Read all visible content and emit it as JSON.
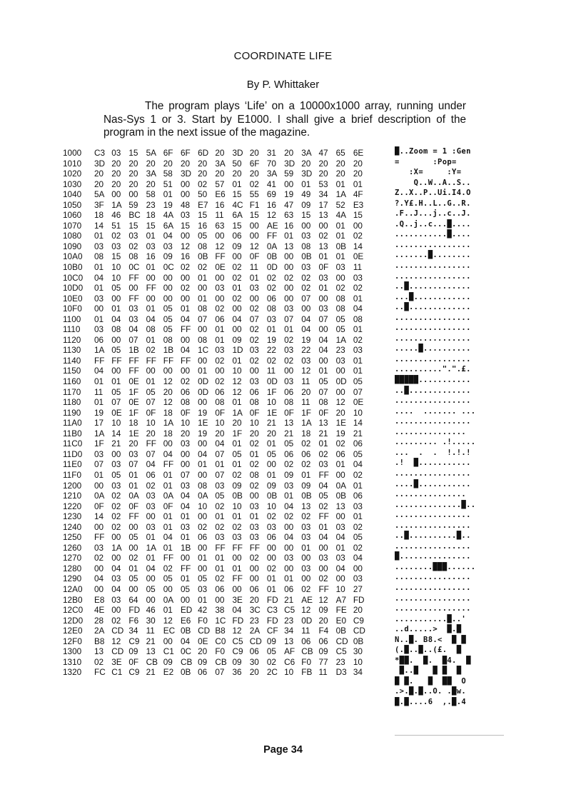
{
  "title": "COORDINATE LIFE",
  "byline": "By P. Whittaker",
  "intro": "The program plays ‘Life’ on a 10000x1000 array, running under Nas-Sys 1 or 3. Start by E1000. I shall give a brief description of the program in the next issue of the magazine.",
  "hexdump": [
    {
      "addr": "1000",
      "bytes": [
        "C3",
        "03",
        "15",
        "5A",
        "6F",
        "6F",
        "6D",
        "20",
        "3D",
        "20",
        "31",
        "20",
        "3A",
        "47",
        "65",
        "6E"
      ]
    },
    {
      "addr": "1010",
      "bytes": [
        "3D",
        "20",
        "20",
        "20",
        "20",
        "20",
        "20",
        "3A",
        "50",
        "6F",
        "70",
        "3D",
        "20",
        "20",
        "20",
        "20"
      ]
    },
    {
      "addr": "1020",
      "bytes": [
        "20",
        "20",
        "20",
        "3A",
        "58",
        "3D",
        "20",
        "20",
        "20",
        "20",
        "3A",
        "59",
        "3D",
        "20",
        "20",
        "20"
      ]
    },
    {
      "addr": "1030",
      "bytes": [
        "20",
        "20",
        "20",
        "20",
        "51",
        "00",
        "02",
        "57",
        "01",
        "02",
        "41",
        "00",
        "01",
        "53",
        "01",
        "01"
      ]
    },
    {
      "addr": "1040",
      "bytes": [
        "5A",
        "00",
        "00",
        "58",
        "01",
        "00",
        "50",
        "E6",
        "15",
        "55",
        "69",
        "19",
        "49",
        "34",
        "1A",
        "4F"
      ]
    },
    {
      "addr": "1050",
      "bytes": [
        "3F",
        "1A",
        "59",
        "23",
        "19",
        "48",
        "E7",
        "16",
        "4C",
        "F1",
        "16",
        "47",
        "09",
        "17",
        "52",
        "E3"
      ]
    },
    {
      "addr": "1060",
      "bytes": [
        "18",
        "46",
        "BC",
        "18",
        "4A",
        "03",
        "15",
        "11",
        "6A",
        "15",
        "12",
        "63",
        "15",
        "13",
        "4A",
        "15"
      ]
    },
    {
      "addr": "1070",
      "bytes": [
        "14",
        "51",
        "15",
        "15",
        "6A",
        "15",
        "16",
        "63",
        "15",
        "00",
        "AE",
        "16",
        "00",
        "00",
        "01",
        "00"
      ]
    },
    {
      "addr": "1080",
      "bytes": [
        "01",
        "02",
        "03",
        "01",
        "04",
        "00",
        "05",
        "00",
        "06",
        "00",
        "FF",
        "01",
        "03",
        "02",
        "01",
        "02"
      ]
    },
    {
      "addr": "1090",
      "bytes": [
        "03",
        "03",
        "02",
        "03",
        "03",
        "12",
        "08",
        "12",
        "09",
        "12",
        "0A",
        "13",
        "08",
        "13",
        "0B",
        "14"
      ]
    },
    {
      "addr": "10A0",
      "bytes": [
        "08",
        "15",
        "08",
        "16",
        "09",
        "16",
        "0B",
        "FF",
        "00",
        "0F",
        "0B",
        "00",
        "0B",
        "01",
        "01",
        "0E"
      ]
    },
    {
      "addr": "10B0",
      "bytes": [
        "01",
        "10",
        "0C",
        "01",
        "0C",
        "02",
        "02",
        "0E",
        "02",
        "11",
        "0D",
        "00",
        "03",
        "0F",
        "03",
        "11"
      ]
    },
    {
      "addr": "10C0",
      "bytes": [
        "04",
        "10",
        "FF",
        "00",
        "00",
        "00",
        "01",
        "00",
        "02",
        "01",
        "02",
        "02",
        "02",
        "03",
        "00",
        "03"
      ]
    },
    {
      "addr": "10D0",
      "bytes": [
        "01",
        "05",
        "00",
        "FF",
        "00",
        "02",
        "00",
        "03",
        "01",
        "03",
        "02",
        "00",
        "02",
        "01",
        "02",
        "02"
      ]
    },
    {
      "addr": "10E0",
      "bytes": [
        "03",
        "00",
        "FF",
        "00",
        "00",
        "00",
        "01",
        "00",
        "02",
        "00",
        "06",
        "00",
        "07",
        "00",
        "08",
        "01"
      ]
    },
    {
      "addr": "10F0",
      "bytes": [
        "00",
        "01",
        "03",
        "01",
        "05",
        "01",
        "08",
        "02",
        "00",
        "02",
        "08",
        "03",
        "00",
        "03",
        "08",
        "04"
      ]
    },
    {
      "addr": "1100",
      "bytes": [
        "01",
        "04",
        "03",
        "04",
        "05",
        "04",
        "07",
        "06",
        "04",
        "07",
        "03",
        "07",
        "04",
        "07",
        "05",
        "08"
      ]
    },
    {
      "addr": "1110",
      "bytes": [
        "03",
        "08",
        "04",
        "08",
        "05",
        "FF",
        "00",
        "01",
        "00",
        "02",
        "01",
        "01",
        "04",
        "00",
        "05",
        "01"
      ]
    },
    {
      "addr": "1120",
      "bytes": [
        "06",
        "00",
        "07",
        "01",
        "08",
        "00",
        "08",
        "01",
        "09",
        "02",
        "19",
        "02",
        "19",
        "04",
        "1A",
        "02"
      ]
    },
    {
      "addr": "1130",
      "bytes": [
        "1A",
        "05",
        "1B",
        "02",
        "1B",
        "04",
        "1C",
        "03",
        "1D",
        "03",
        "22",
        "03",
        "22",
        "04",
        "23",
        "03"
      ]
    },
    {
      "addr": "1140",
      "bytes": [
        "FF",
        "FF",
        "FF",
        "FF",
        "FF",
        "FF",
        "00",
        "02",
        "01",
        "02",
        "02",
        "02",
        "03",
        "00",
        "03",
        "01"
      ]
    },
    {
      "addr": "1150",
      "bytes": [
        "04",
        "00",
        "FF",
        "00",
        "00",
        "00",
        "01",
        "00",
        "10",
        "00",
        "11",
        "00",
        "12",
        "01",
        "00",
        "01"
      ]
    },
    {
      "addr": "1160",
      "bytes": [
        "01",
        "01",
        "0E",
        "01",
        "12",
        "02",
        "0D",
        "02",
        "12",
        "03",
        "0D",
        "03",
        "11",
        "05",
        "0D",
        "05"
      ]
    },
    {
      "addr": "1170",
      "bytes": [
        "11",
        "05",
        "1F",
        "05",
        "20",
        "06",
        "0D",
        "06",
        "12",
        "06",
        "1F",
        "06",
        "20",
        "07",
        "00",
        "07"
      ]
    },
    {
      "addr": "1180",
      "bytes": [
        "01",
        "07",
        "0E",
        "07",
        "12",
        "08",
        "00",
        "08",
        "01",
        "08",
        "10",
        "08",
        "11",
        "08",
        "12",
        "0E"
      ]
    },
    {
      "addr": "1190",
      "bytes": [
        "19",
        "0E",
        "1F",
        "0F",
        "18",
        "0F",
        "19",
        "0F",
        "1A",
        "0F",
        "1E",
        "0F",
        "1F",
        "0F",
        "20",
        "10"
      ]
    },
    {
      "addr": "11A0",
      "bytes": [
        "17",
        "10",
        "18",
        "10",
        "1A",
        "10",
        "1E",
        "10",
        "20",
        "10",
        "21",
        "13",
        "1A",
        "13",
        "1E",
        "14"
      ]
    },
    {
      "addr": "11B0",
      "bytes": [
        "1A",
        "14",
        "1E",
        "20",
        "18",
        "20",
        "19",
        "20",
        "1F",
        "20",
        "20",
        "21",
        "18",
        "21",
        "19",
        "21"
      ]
    },
    {
      "addr": "11C0",
      "bytes": [
        "1F",
        "21",
        "20",
        "FF",
        "00",
        "03",
        "00",
        "04",
        "01",
        "02",
        "01",
        "05",
        "02",
        "01",
        "02",
        "06"
      ]
    },
    {
      "addr": "11D0",
      "bytes": [
        "03",
        "00",
        "03",
        "07",
        "04",
        "00",
        "04",
        "07",
        "05",
        "01",
        "05",
        "06",
        "06",
        "02",
        "06",
        "05"
      ]
    },
    {
      "addr": "11E0",
      "bytes": [
        "07",
        "03",
        "07",
        "04",
        "FF",
        "00",
        "01",
        "01",
        "01",
        "02",
        "00",
        "02",
        "02",
        "03",
        "01",
        "04"
      ]
    },
    {
      "addr": "11F0",
      "bytes": [
        "01",
        "05",
        "01",
        "06",
        "01",
        "07",
        "00",
        "07",
        "02",
        "08",
        "01",
        "09",
        "01",
        "FF",
        "00",
        "02"
      ]
    },
    {
      "addr": "1200",
      "bytes": [
        "00",
        "03",
        "01",
        "02",
        "01",
        "03",
        "08",
        "03",
        "09",
        "02",
        "09",
        "03",
        "09",
        "04",
        "0A",
        "01"
      ]
    },
    {
      "addr": "1210",
      "bytes": [
        "0A",
        "02",
        "0A",
        "03",
        "0A",
        "04",
        "0A",
        "05",
        "0B",
        "00",
        "0B",
        "01",
        "0B",
        "05",
        "0B",
        "06"
      ]
    },
    {
      "addr": "1220",
      "bytes": [
        "0F",
        "02",
        "0F",
        "03",
        "0F",
        "04",
        "10",
        "02",
        "10",
        "03",
        "10",
        "04",
        "13",
        "02",
        "13",
        "03"
      ]
    },
    {
      "addr": "1230",
      "bytes": [
        "14",
        "02",
        "FF",
        "00",
        "01",
        "01",
        "00",
        "01",
        "01",
        "01",
        "02",
        "02",
        "02",
        "FF",
        "00",
        "01"
      ]
    },
    {
      "addr": "1240",
      "bytes": [
        "00",
        "02",
        "00",
        "03",
        "01",
        "03",
        "02",
        "02",
        "02",
        "03",
        "03",
        "00",
        "03",
        "01",
        "03",
        "02"
      ]
    },
    {
      "addr": "1250",
      "bytes": [
        "FF",
        "00",
        "05",
        "01",
        "04",
        "01",
        "06",
        "03",
        "03",
        "03",
        "06",
        "04",
        "03",
        "04",
        "04",
        "05"
      ]
    },
    {
      "addr": "1260",
      "bytes": [
        "03",
        "1A",
        "00",
        "1A",
        "01",
        "1B",
        "00",
        "FF",
        "FF",
        "FF",
        "00",
        "00",
        "01",
        "00",
        "01",
        "02"
      ]
    },
    {
      "addr": "1270",
      "bytes": [
        "02",
        "00",
        "02",
        "01",
        "FF",
        "00",
        "01",
        "01",
        "00",
        "02",
        "00",
        "03",
        "00",
        "03",
        "03",
        "04"
      ]
    },
    {
      "addr": "1280",
      "bytes": [
        "00",
        "04",
        "01",
        "04",
        "02",
        "FF",
        "00",
        "01",
        "01",
        "00",
        "02",
        "00",
        "03",
        "00",
        "04",
        "00"
      ]
    },
    {
      "addr": "1290",
      "bytes": [
        "04",
        "03",
        "05",
        "00",
        "05",
        "01",
        "05",
        "02",
        "FF",
        "00",
        "01",
        "01",
        "00",
        "02",
        "00",
        "03"
      ]
    },
    {
      "addr": "12A0",
      "bytes": [
        "00",
        "04",
        "00",
        "05",
        "00",
        "05",
        "03",
        "06",
        "00",
        "06",
        "01",
        "06",
        "02",
        "FF",
        "10",
        "27"
      ]
    },
    {
      "addr": "12B0",
      "bytes": [
        "E8",
        "03",
        "64",
        "00",
        "0A",
        "00",
        "01",
        "00",
        "3E",
        "20",
        "FD",
        "21",
        "AE",
        "12",
        "A7",
        "FD"
      ]
    },
    {
      "addr": "12C0",
      "bytes": [
        "4E",
        "00",
        "FD",
        "46",
        "01",
        "ED",
        "42",
        "38",
        "04",
        "3C",
        "C3",
        "C5",
        "12",
        "09",
        "FE",
        "20"
      ]
    },
    {
      "addr": "12D0",
      "bytes": [
        "28",
        "02",
        "F6",
        "30",
        "12",
        "E6",
        "F0",
        "1C",
        "FD",
        "23",
        "FD",
        "23",
        "0D",
        "20",
        "E0",
        "C9"
      ]
    },
    {
      "addr": "12E0",
      "bytes": [
        "2A",
        "CD",
        "34",
        "11",
        "EC",
        "0B",
        "CD",
        "B8",
        "12",
        "2A",
        "CF",
        "34",
        "11",
        "F4",
        "0B",
        "CD"
      ]
    },
    {
      "addr": "12F0",
      "bytes": [
        "B8",
        "12",
        "C9",
        "21",
        "00",
        "04",
        "0E",
        "C0",
        "C5",
        "CD",
        "09",
        "13",
        "06",
        "06",
        "CD",
        "0B"
      ]
    },
    {
      "addr": "1300",
      "bytes": [
        "13",
        "CD",
        "09",
        "13",
        "C1",
        "0C",
        "20",
        "F0",
        "C9",
        "06",
        "05",
        "AF",
        "CB",
        "09",
        "C5",
        "30"
      ]
    },
    {
      "addr": "1310",
      "bytes": [
        "02",
        "3E",
        "0F",
        "CB",
        "09",
        "CB",
        "09",
        "CB",
        "09",
        "30",
        "02",
        "C6",
        "F0",
        "77",
        "23",
        "10"
      ]
    },
    {
      "addr": "1320",
      "bytes": [
        "FC",
        "C1",
        "C9",
        "21",
        "E2",
        "0B",
        "06",
        "07",
        "36",
        "20",
        "2C",
        "10",
        "FB",
        "11",
        "D3",
        "34"
      ]
    }
  ],
  "screen_lines": [
    "█..Zoom = 1 :Gen",
    "=       :Pop=",
    "   :X=     :Y=",
    "    Q..W..A..S..",
    "Z..X..P..Ui.I4.O",
    "?.Y£.H..L..G..R.",
    ".F..J...j..c..J.",
    ".Q..j..c...█....",
    "...........█....",
    "................",
    ".......█........",
    "................",
    "................",
    "..█.............",
    "...█............",
    "..█.............",
    "................",
    "................",
    "................",
    ".....█..........",
    "................",
    "..........\".\".£.",
    "█████...........",
    "..█.............",
    "................",
    "....  ....... ...",
    "................",
    "...............",
    "......... .!.....",
    "...  .  .  !.!.!",
    ".!  █...........",
    "................",
    "....█...........",
    "...............",
    "..............█..",
    "................",
    "................",
    "..█..........█..",
    "................",
    "█...............",
    "........███......",
    "................",
    "................",
    "................",
    "................",
    "...........█..'",
    "..d.....>  █.█",
    "N..█. B8.<  █ █",
    "(.█..█..(£.  █",
    "*██.  █.  █4.  █",
    " █..█   █ █  █  ",
    "█ █.   █  ██  O",
    ".>.█.█..O. .█w.",
    "█.█....6  ,.█.4"
  ],
  "page_footer": "Page 34"
}
